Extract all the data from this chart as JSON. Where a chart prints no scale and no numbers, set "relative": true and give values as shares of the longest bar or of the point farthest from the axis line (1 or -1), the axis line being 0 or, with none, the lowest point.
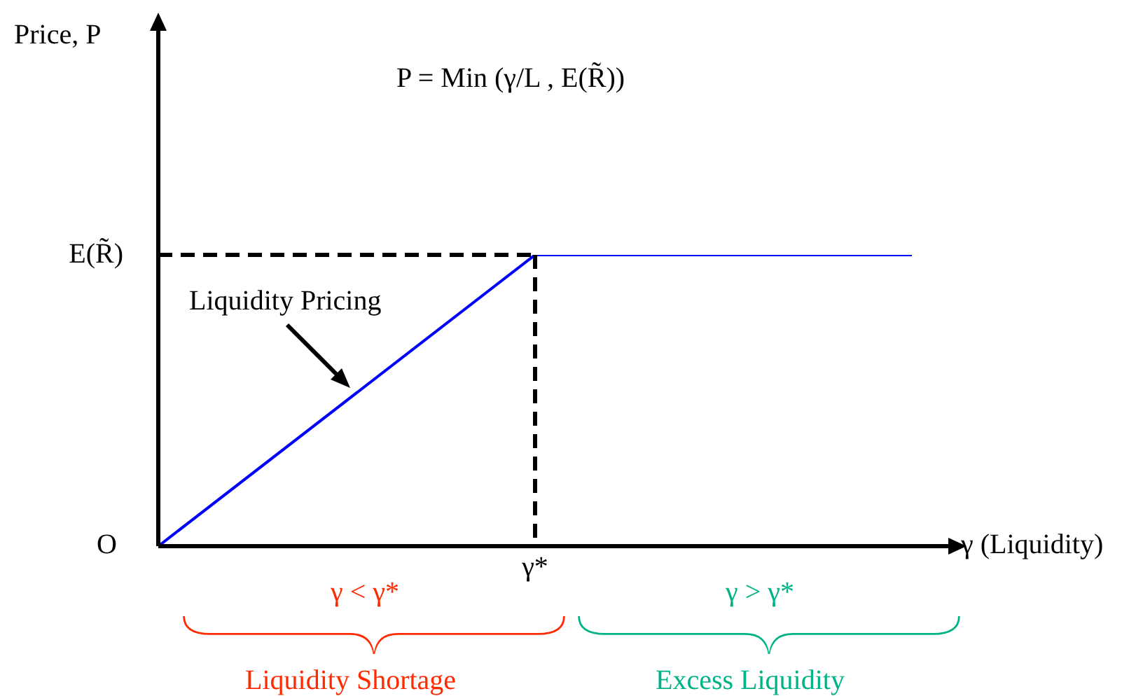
{
  "chart_data": {
    "type": "line",
    "relative": true,
    "xlabel": "γ (Liquidity)",
    "categories": [
      "O",
      "γ*",
      null
    ],
    "series": [
      {
        "color": "#0000ff",
        "values": [
          0,
          1,
          1
        ]
      }
    ],
    "ref_lines": [
      {
        "axis": "y",
        "value": 1,
        "label": "E(R̃)",
        "line_style": "dashed",
        "color": "#000000"
      },
      {
        "axis": "x",
        "value": "γ*",
        "line_style": "dashed",
        "color": "#000000"
      }
    ],
    "legend": false,
    "marker": "none",
    "line_style": "solid",
    "annotations": [
      "P = Min (γ/L , E(R̃))",
      "Liquidity Pricing",
      "γ < γ*",
      "γ > γ*",
      "Liquidity Shortage",
      "Excess Liquidity",
      "Price, P"
    ]
  }
}
